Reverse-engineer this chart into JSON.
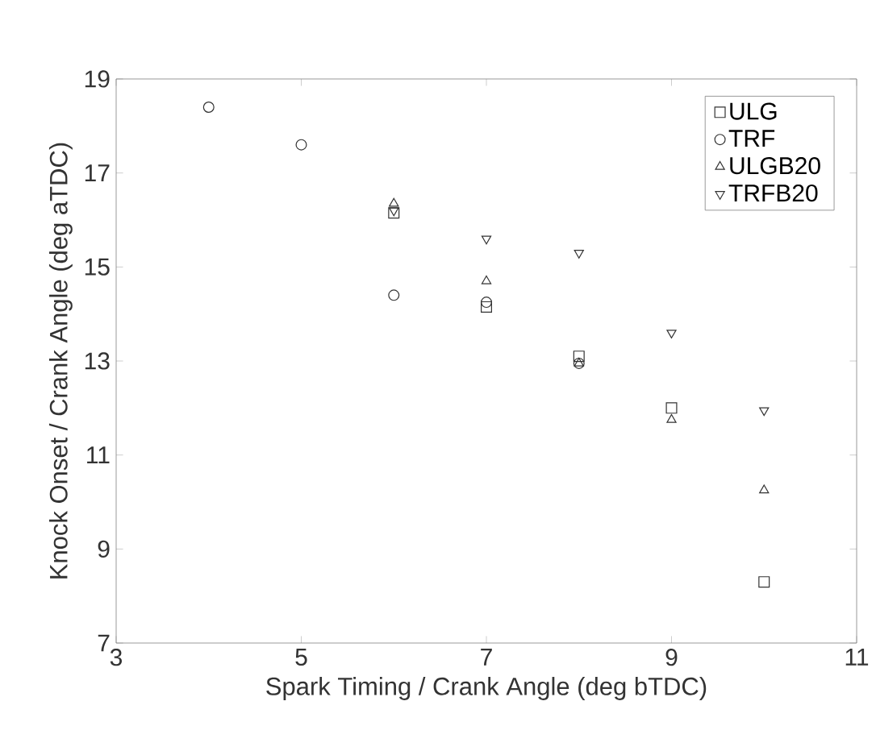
{
  "chart_data": {
    "type": "scatter",
    "xlabel": "Spark Timing / Crank Angle (deg bTDC)",
    "ylabel": "Knock Onset / Crank Angle (deg aTDC)",
    "xlim": [
      3,
      11
    ],
    "xticks": [
      3,
      5,
      7,
      9,
      11
    ],
    "ylim": [
      7,
      19
    ],
    "yticks": [
      7,
      9,
      11,
      13,
      15,
      17,
      19
    ],
    "legend": "top right",
    "series": [
      {
        "name": "ULG",
        "color": "#333333",
        "marker": "square",
        "x": [
          6,
          7,
          8,
          9,
          10
        ],
        "values": [
          16.15,
          14.15,
          13.1,
          12.0,
          8.3
        ]
      },
      {
        "name": "TRF",
        "color": "#333333",
        "marker": "circle",
        "x": [
          4,
          5,
          6,
          7,
          8
        ],
        "values": [
          18.4,
          17.6,
          14.4,
          14.25,
          12.95
        ]
      },
      {
        "name": "ULGB20",
        "color": "#333333",
        "marker": "triangle",
        "x": [
          6,
          7,
          8,
          9,
          10
        ],
        "values": [
          16.35,
          14.7,
          12.95,
          11.75,
          10.25
        ]
      },
      {
        "name": "TRFB20",
        "color": "#333333",
        "marker": "triangle down",
        "x": [
          6,
          7,
          8,
          9,
          10
        ],
        "values": [
          16.2,
          15.6,
          15.3,
          13.6,
          11.95
        ]
      }
    ]
  }
}
